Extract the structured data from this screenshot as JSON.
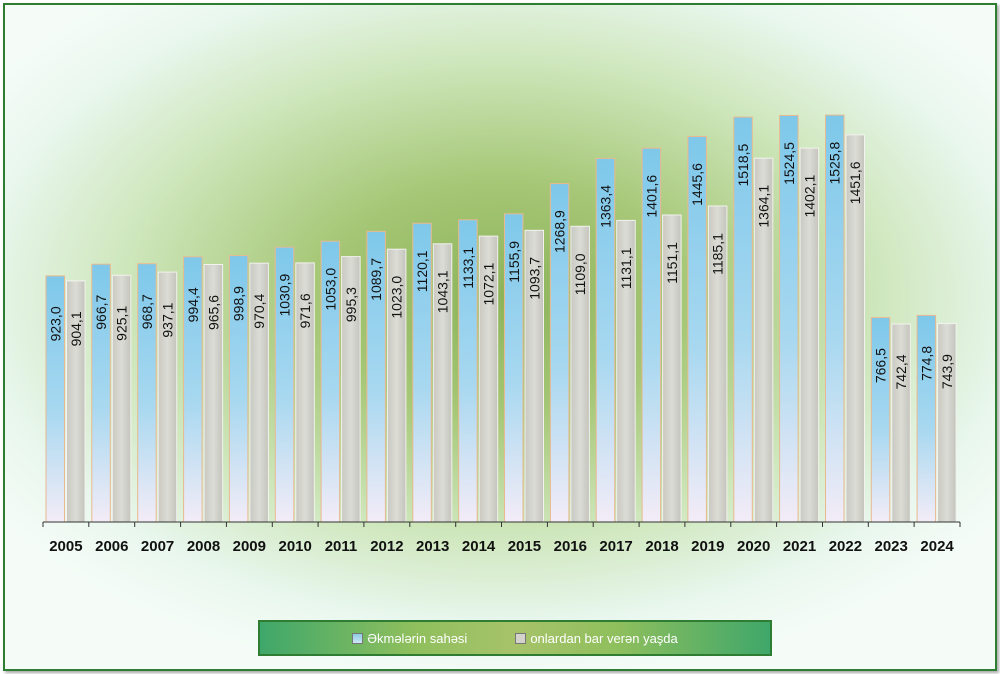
{
  "chart_data": {
    "type": "bar",
    "categories": [
      "2005",
      "2006",
      "2007",
      "2008",
      "2009",
      "2010",
      "2011",
      "2012",
      "2013",
      "2014",
      "2015",
      "2016",
      "2017",
      "2018",
      "2019",
      "2020",
      "2021",
      "2022",
      "2023",
      "2024"
    ],
    "series": [
      {
        "name": "Əkmələrin sahəsi",
        "values": [
          923.0,
          966.7,
          968.7,
          994.4,
          998.9,
          1030.9,
          1053.0,
          1089.7,
          1120.1,
          1133.1,
          1155.9,
          1268.9,
          1363.4,
          1401.6,
          1445.6,
          1518.5,
          1524.5,
          1525.8,
          766.5,
          774.8
        ],
        "labels": [
          "923,0",
          "966,7",
          "968,7",
          "994,4",
          "998,9",
          "1030,9",
          "1053,0",
          "1089,7",
          "1120,1",
          "1133,1",
          "1155,9",
          "1268,9",
          "1363,4",
          "1401,6",
          "1445,6",
          "1518,5",
          "1524,5",
          "1525,8",
          "766,5",
          "774,8"
        ],
        "color": "#7ec8ea"
      },
      {
        "name": "onlardan bar verən yaşda",
        "values": [
          904.1,
          925.1,
          937.1,
          965.6,
          970.4,
          971.6,
          995.3,
          1023.0,
          1043.1,
          1072.1,
          1093.7,
          1109.0,
          1131.1,
          1151.1,
          1185.1,
          1364.1,
          1402.1,
          1451.6,
          742.4,
          743.9
        ],
        "labels": [
          "904,1",
          "925,1",
          "937,1",
          "965,6",
          "970,4",
          "971,6",
          "995,3",
          "1023,0",
          "1043,1",
          "1072,1",
          "1093,7",
          "1109,0",
          "1131,1",
          "1151,1",
          "1185,1",
          "1364,1",
          "1402,1",
          "1451,6",
          "742,4",
          "743,9"
        ],
        "color": "#d3d3cc"
      }
    ],
    "title": "",
    "xlabel": "",
    "ylabel": "",
    "ylim": [
      0,
      1650
    ],
    "grid": false,
    "legend_position": "bottom"
  }
}
